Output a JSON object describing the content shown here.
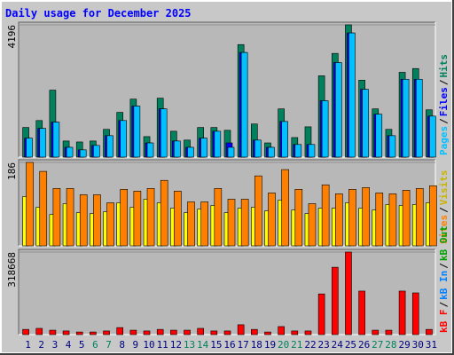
{
  "chart_data": [
    {
      "type": "bar",
      "title": "Daily usage for December 2025",
      "ylim": [
        0,
        4196
      ],
      "yticks": [
        4196
      ],
      "legend_separator": "/",
      "series": [
        {
          "name": "Hits",
          "color": "#00805c",
          "values": [
            940,
            1160,
            2125,
            510,
            480,
            510,
            880,
            1420,
            1840,
            650,
            1870,
            820,
            540,
            940,
            940,
            850,
            3570,
            1050,
            450,
            1530,
            620,
            960,
            2580,
            3290,
            4196,
            2440,
            1530,
            880,
            2690,
            2810,
            1500
          ]
        },
        {
          "name": "Files",
          "color": "#0000ff",
          "values": [
            600,
            910,
            1110,
            310,
            230,
            370,
            680,
            1160,
            1620,
            450,
            1530,
            510,
            310,
            600,
            820,
            450,
            3320,
            540,
            310,
            1130,
            400,
            400,
            1790,
            3000,
            3940,
            2150,
            1360,
            680,
            2470,
            2470,
            1300
          ]
        },
        {
          "name": "Pages",
          "color": "#00c0ff",
          "values": [
            600,
            910,
            1110,
            310,
            230,
            370,
            680,
            1160,
            1620,
            450,
            1530,
            510,
            310,
            600,
            820,
            310,
            3320,
            540,
            310,
            1130,
            400,
            400,
            1790,
            3000,
            3940,
            2150,
            1360,
            680,
            2470,
            2470,
            1300
          ]
        }
      ],
      "legend": [
        {
          "name": "Pages",
          "color": "#00c0ff"
        },
        {
          "name": "Files",
          "color": "#0000ff"
        },
        {
          "name": "Hits",
          "color": "#00805c"
        }
      ]
    },
    {
      "type": "bar",
      "ylim": [
        0,
        186
      ],
      "yticks": [
        186
      ],
      "legend_separator": "/",
      "series": [
        {
          "name": "Visits",
          "color": "#ffff00",
          "values": [
            110,
            86,
            70,
            94,
            74,
            72,
            76,
            96,
            86,
            104,
            96,
            84,
            74,
            82,
            90,
            74,
            84,
            86,
            78,
            102,
            80,
            72,
            84,
            84,
            96,
            84,
            80,
            92,
            90,
            92,
            96
          ]
        },
        {
          "name": "Sites",
          "color": "#ff8000",
          "values": [
            186,
            166,
            128,
            128,
            114,
            114,
            96,
            126,
            122,
            128,
            146,
            122,
            98,
            98,
            128,
            104,
            104,
            156,
            118,
            170,
            126,
            94,
            136,
            116,
            126,
            130,
            118,
            116,
            124,
            128,
            134
          ]
        }
      ],
      "legend": [
        {
          "name": "Sites",
          "color": "#ff8000"
        },
        {
          "name": "Visits",
          "color": "#c8b400"
        }
      ]
    },
    {
      "type": "bar",
      "ylim": [
        0,
        318668
      ],
      "yticks": [
        318668
      ],
      "legend_separator": "/",
      "series": [
        {
          "name": "kB F",
          "color": "#ff0000",
          "values": [
            20000,
            24000,
            17000,
            14000,
            10000,
            10000,
            14000,
            27000,
            17000,
            14000,
            20000,
            17000,
            17000,
            24000,
            14000,
            14000,
            38000,
            20000,
            10000,
            31000,
            14000,
            14000,
            157000,
            260000,
            318668,
            168000,
            17000,
            17000,
            168000,
            161000,
            20000
          ]
        }
      ],
      "legend": [
        {
          "name": "kB F",
          "color": "#ff0000"
        },
        {
          "name": "kB In",
          "color": "#0080ff"
        },
        {
          "name": "kB Out",
          "color": "#00a000"
        }
      ],
      "categories": [
        "1",
        "2",
        "3",
        "4",
        "5",
        "6",
        "7",
        "8",
        "9",
        "10",
        "11",
        "12",
        "13",
        "14",
        "15",
        "16",
        "17",
        "18",
        "19",
        "20",
        "21",
        "22",
        "23",
        "24",
        "25",
        "26",
        "27",
        "28",
        "29",
        "30",
        "31"
      ],
      "category_colors": [
        "#000080",
        "#000080",
        "#000080",
        "#000080",
        "#000080",
        "#00805c",
        "#00805c",
        "#000080",
        "#000080",
        "#000080",
        "#000080",
        "#000080",
        "#00805c",
        "#00805c",
        "#000080",
        "#000080",
        "#000080",
        "#000080",
        "#000080",
        "#00805c",
        "#00805c",
        "#000080",
        "#000080",
        "#000080",
        "#000080",
        "#000080",
        "#00805c",
        "#00805c",
        "#000080",
        "#000080",
        "#000080"
      ]
    }
  ]
}
